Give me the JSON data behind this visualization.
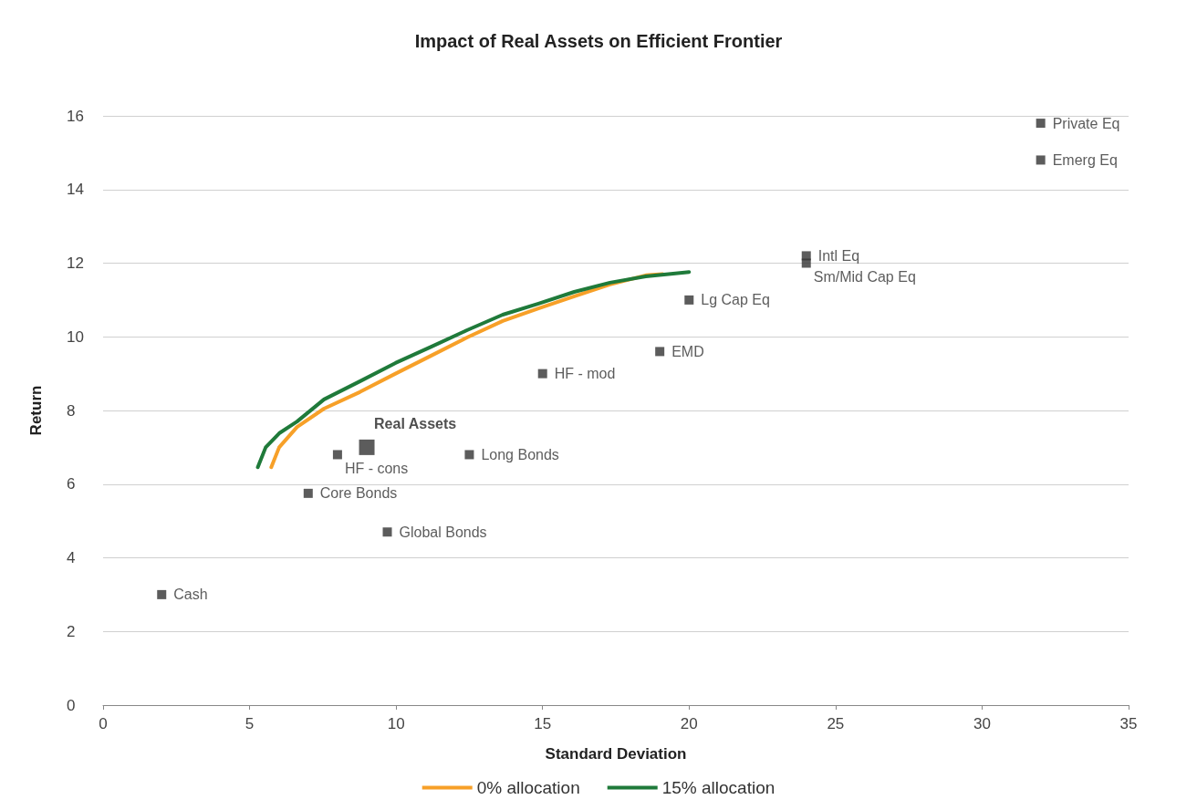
{
  "chart_data": {
    "type": "line",
    "title": "Impact of Real Assets on Efficient Frontier",
    "xlabel": "Standard Deviation",
    "ylabel": "Return",
    "xlim": [
      0,
      35
    ],
    "xticks": [
      0,
      5,
      10,
      15,
      20,
      25,
      30,
      35
    ],
    "ylim": [
      0,
      16
    ],
    "yticks": [
      0,
      2,
      4,
      6,
      8,
      10,
      12,
      14,
      16
    ],
    "grid": "y",
    "legend": "bottom",
    "series": [
      {
        "name": "0% allocation",
        "marker": "none",
        "color": "#f7a028",
        "x": [
          5.74,
          6.01,
          6.62,
          7.54,
          8.76,
          9.98,
          11.2,
          12.42,
          13.64,
          14.86,
          16.08,
          17.3,
          18.52,
          19.1
        ],
        "values": [
          6.46,
          7.0,
          7.55,
          8.05,
          8.5,
          9.0,
          9.49,
          9.98,
          10.43,
          10.77,
          11.1,
          11.42,
          11.67,
          11.7
        ]
      },
      {
        "name": "15% allocation",
        "marker": "none",
        "color": "#1f7a3a",
        "x": [
          5.28,
          5.55,
          6.01,
          6.62,
          7.54,
          8.76,
          9.98,
          11.2,
          12.42,
          13.64,
          14.86,
          16.08,
          17.3,
          18.52,
          20
        ],
        "values": [
          6.46,
          7.0,
          7.38,
          7.7,
          8.3,
          8.79,
          9.29,
          9.73,
          10.18,
          10.6,
          10.9,
          11.22,
          11.47,
          11.64,
          11.76
        ]
      },
      {
        "type": "scatter",
        "marker": "square",
        "color": "#333333",
        "x": [
          32,
          32,
          24,
          24,
          20,
          19,
          15,
          8,
          12.5,
          7,
          9.7,
          2
        ],
        "values": [
          15.8,
          14.8,
          12.2,
          12.0,
          11.0,
          9.6,
          9.0,
          6.8,
          6.8,
          5.75,
          4.7,
          3.0
        ]
      },
      {
        "name": "Real Assets",
        "type": "scatter",
        "marker": "square",
        "color": "#333333",
        "x": [
          9
        ],
        "values": [
          7.0
        ]
      }
    ],
    "annotations": [
      {
        "text": "Private Eq",
        "x": 32,
        "y": 15.8
      },
      {
        "text": "Emerg Eq",
        "x": 32,
        "y": 14.8
      },
      {
        "text": "Intl Eq",
        "x": 24,
        "y": 12.2
      },
      {
        "text": "Sm/Mid Cap Eq",
        "x": 24,
        "y": 12.0
      },
      {
        "text": "Lg Cap Eq",
        "x": 20,
        "y": 11.0
      },
      {
        "text": "EMD",
        "x": 19,
        "y": 9.6
      },
      {
        "text": "HF - mod",
        "x": 15,
        "y": 9.0
      },
      {
        "text": "HF - cons",
        "x": 8,
        "y": 6.8
      },
      {
        "text": "Long Bonds",
        "x": 12.5,
        "y": 6.8
      },
      {
        "text": "Core Bonds",
        "x": 7,
        "y": 5.75
      },
      {
        "text": "Global Bonds",
        "x": 9.7,
        "y": 4.7
      },
      {
        "text": "Cash",
        "x": 2,
        "y": 3.0
      }
    ]
  }
}
